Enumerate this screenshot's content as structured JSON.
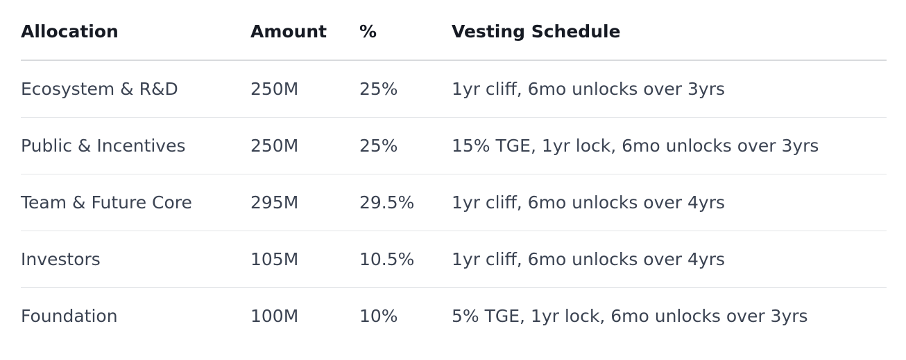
{
  "table": {
    "header": [
      "Allocation",
      "Amount",
      "%",
      "Vesting Schedule"
    ],
    "rows": [
      [
        "Ecosystem & R&D",
        "250M",
        "25%",
        "1yr cliff, 6mo unlocks over 3yrs"
      ],
      [
        "Public & Incentives",
        "250M",
        "25%",
        "15% TGE, 1yr lock, 6mo unlocks over 3yrs"
      ],
      [
        "Team & Future Core",
        "295M",
        "29.5%",
        "1yr cliff, 6mo unlocks over 4yrs"
      ],
      [
        "Investors",
        "105M",
        "10.5%",
        "1yr cliff, 6mo unlocks over 4yrs"
      ],
      [
        "Foundation",
        "100M",
        "10%",
        "5% TGE, 1yr lock, 6mo unlocks over 3yrs"
      ]
    ]
  }
}
